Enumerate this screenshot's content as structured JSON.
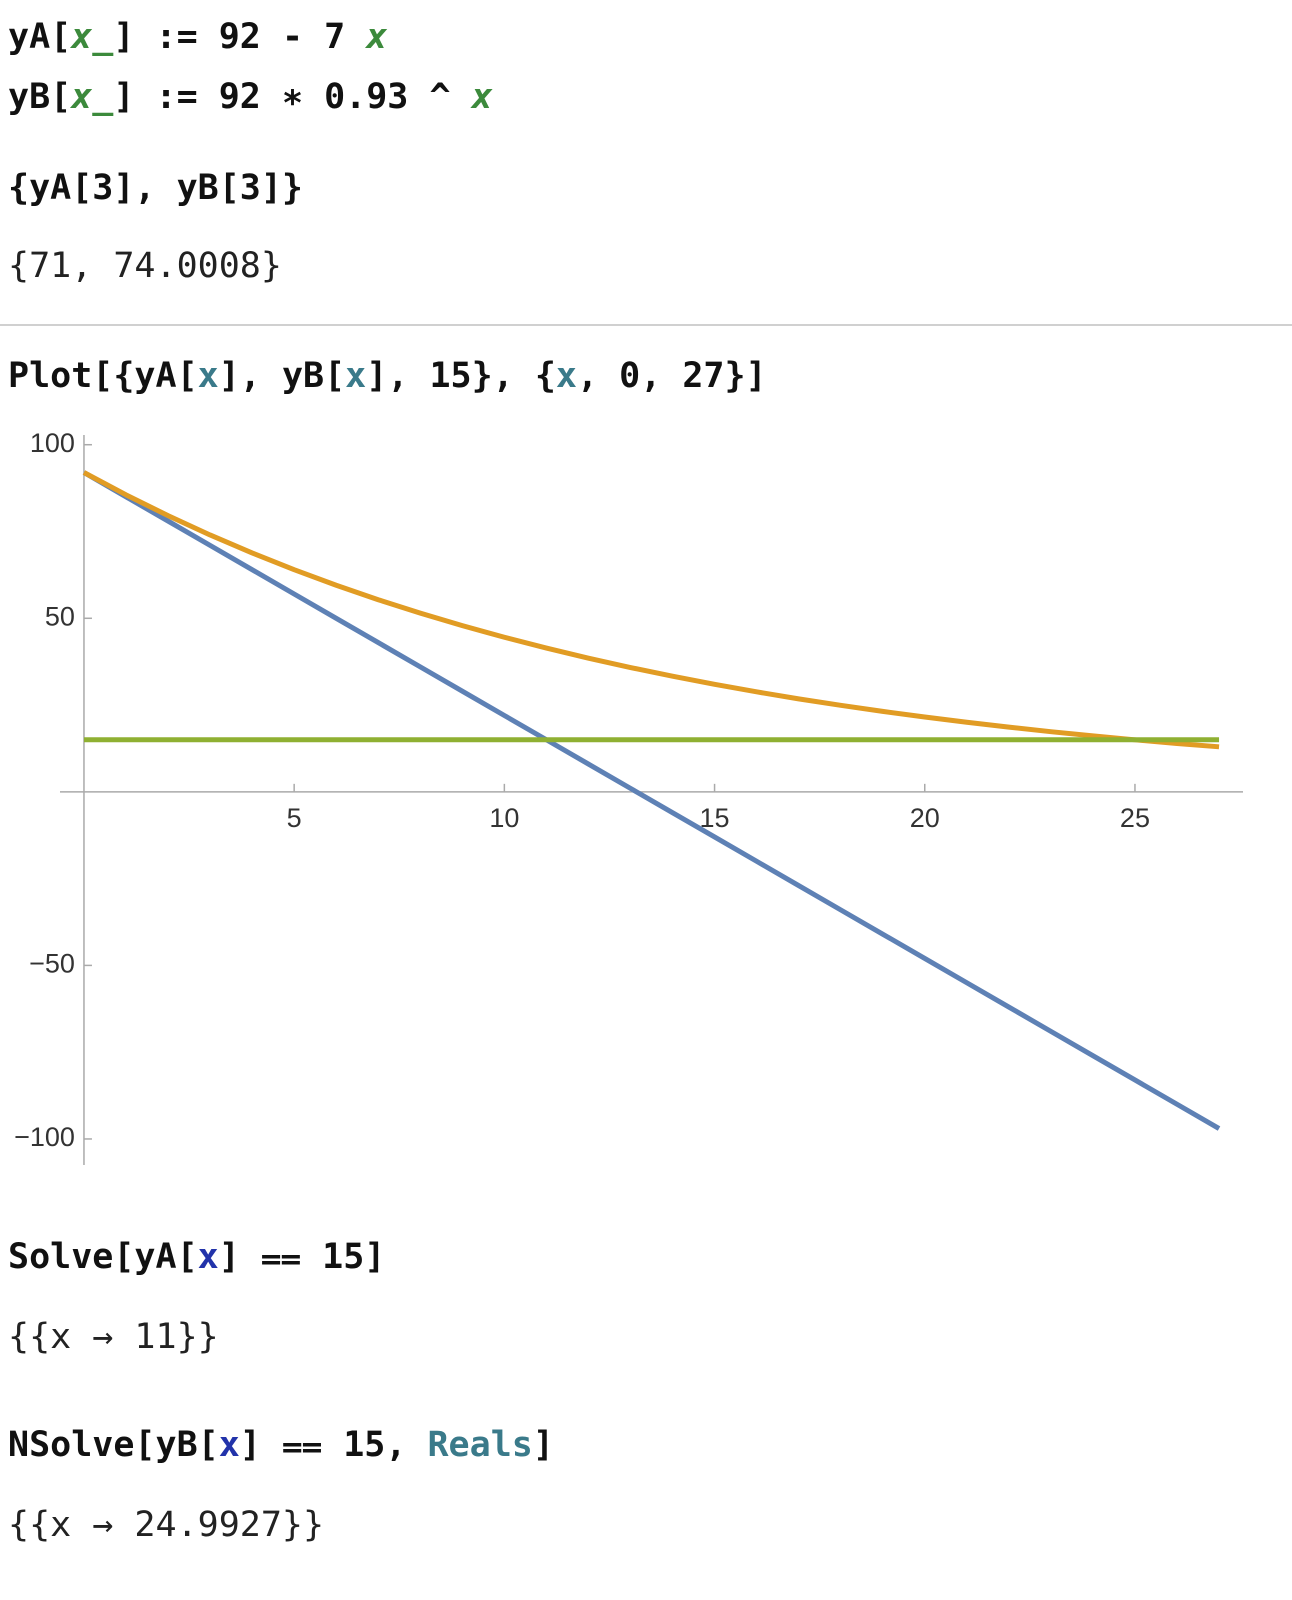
{
  "notebook": {
    "cells": [
      {
        "input": [
          "yA[",
          "x_",
          "] := 92 - 7 ",
          "x"
        ]
      },
      {
        "input": [
          "yB[",
          "x_",
          "] := 92 ∗ 0.93 ^ ",
          "x"
        ]
      },
      {
        "input": [
          "{yA[3], yB[3]}"
        ],
        "output": "{71, 74.0008}"
      },
      {
        "input": [
          "Plot[{yA[",
          "x",
          "], yB[",
          "x",
          "], 15}, {",
          "x",
          ", 0, 27}]"
        ]
      },
      {
        "input": [
          "Solve[yA[",
          "x",
          "] ⩵ 15]"
        ],
        "output": "{{x → 11}}"
      },
      {
        "input": [
          "NSolve[yB[",
          "x",
          "] ⩵ 15, ",
          "Reals",
          "]"
        ],
        "output": "{{x → 24.9927}}"
      }
    ]
  },
  "chart_data": {
    "type": "line",
    "x": [
      0,
      1,
      2,
      3,
      4,
      5,
      6,
      7,
      8,
      9,
      10,
      11,
      12,
      13,
      14,
      15,
      16,
      17,
      18,
      19,
      20,
      21,
      22,
      23,
      24,
      25,
      26,
      27
    ],
    "series": [
      {
        "color": "#5e81b5",
        "values": [
          92,
          85,
          78,
          71,
          64,
          57,
          50,
          43,
          36,
          29,
          22,
          15,
          8,
          1,
          -6,
          -13,
          -20,
          -27,
          -34,
          -41,
          -48,
          -55,
          -62,
          -69,
          -76,
          -83,
          -90,
          -97
        ]
      },
      {
        "color": "#e19c24",
        "values": [
          92,
          85.56,
          79.57,
          74.0,
          68.82,
          64.0,
          59.52,
          55.35,
          51.48,
          47.88,
          44.53,
          41.41,
          38.51,
          35.81,
          33.31,
          30.98,
          28.81,
          26.79,
          24.92,
          23.17,
          21.55,
          20.04,
          18.64,
          17.33,
          16.12,
          14.99,
          13.94,
          12.97
        ]
      },
      {
        "color": "#8fb032",
        "values": [
          15,
          15,
          15,
          15,
          15,
          15,
          15,
          15,
          15,
          15,
          15,
          15,
          15,
          15,
          15,
          15,
          15,
          15,
          15,
          15,
          15,
          15,
          15,
          15,
          15,
          15,
          15,
          15
        ]
      }
    ],
    "xlim": [
      -0.57,
      27.57
    ],
    "ylim": [
      -107.5,
      102.8
    ],
    "xticks": [
      5,
      10,
      15,
      20,
      25
    ],
    "yticks": [
      {
        "value": -100,
        "label": "−100"
      },
      {
        "value": -50,
        "label": "−50"
      },
      50,
      100
    ]
  }
}
